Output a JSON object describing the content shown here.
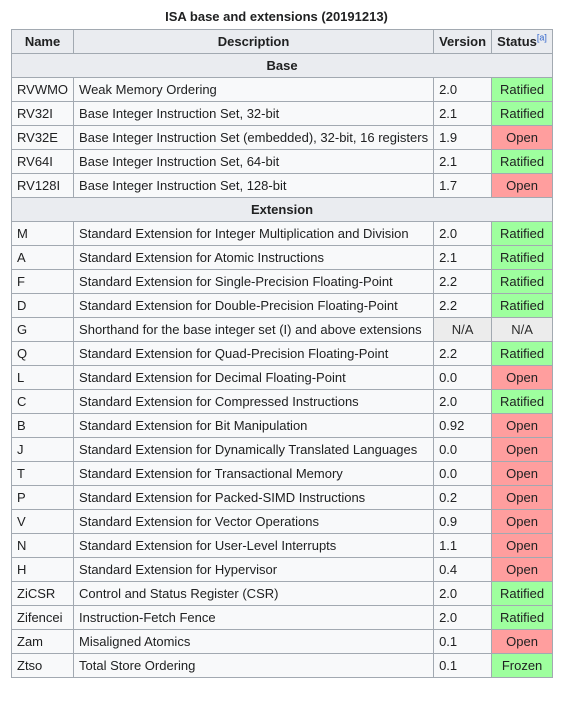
{
  "caption": "ISA base and extensions (20191213)",
  "headers": {
    "name": "Name",
    "description": "Description",
    "version": "Version",
    "status": "Status",
    "status_note": "[a]"
  },
  "sections": [
    {
      "title": "Base",
      "rows": [
        {
          "name": "RVWMO",
          "description": "Weak Memory Ordering",
          "version": "2.0",
          "status": "Ratified"
        },
        {
          "name": "RV32I",
          "description": "Base Integer Instruction Set, 32-bit",
          "version": "2.1",
          "status": "Ratified"
        },
        {
          "name": "RV32E",
          "description": "Base Integer Instruction Set (embedded), 32-bit, 16 registers",
          "version": "1.9",
          "status": "Open"
        },
        {
          "name": "RV64I",
          "description": "Base Integer Instruction Set, 64-bit",
          "version": "2.1",
          "status": "Ratified"
        },
        {
          "name": "RV128I",
          "description": "Base Integer Instruction Set, 128-bit",
          "version": "1.7",
          "status": "Open"
        }
      ]
    },
    {
      "title": "Extension",
      "rows": [
        {
          "name": "M",
          "description": "Standard Extension for Integer Multiplication and Division",
          "version": "2.0",
          "status": "Ratified"
        },
        {
          "name": "A",
          "description": "Standard Extension for Atomic Instructions",
          "version": "2.1",
          "status": "Ratified"
        },
        {
          "name": "F",
          "description": "Standard Extension for Single-Precision Floating-Point",
          "version": "2.2",
          "status": "Ratified"
        },
        {
          "name": "D",
          "description": "Standard Extension for Double-Precision Floating-Point",
          "version": "2.2",
          "status": "Ratified"
        },
        {
          "name": "G",
          "description": "Shorthand for the base integer set (I) and above extensions",
          "version": "N/A",
          "status": "N/A"
        },
        {
          "name": "Q",
          "description": "Standard Extension for Quad-Precision Floating-Point",
          "version": "2.2",
          "status": "Ratified"
        },
        {
          "name": "L",
          "description": "Standard Extension for Decimal Floating-Point",
          "version": "0.0",
          "status": "Open"
        },
        {
          "name": "C",
          "description": "Standard Extension for Compressed Instructions",
          "version": "2.0",
          "status": "Ratified"
        },
        {
          "name": "B",
          "description": "Standard Extension for Bit Manipulation",
          "version": "0.92",
          "status": "Open"
        },
        {
          "name": "J",
          "description": "Standard Extension for Dynamically Translated Languages",
          "version": "0.0",
          "status": "Open"
        },
        {
          "name": "T",
          "description": "Standard Extension for Transactional Memory",
          "version": "0.0",
          "status": "Open"
        },
        {
          "name": "P",
          "description": "Standard Extension for Packed-SIMD Instructions",
          "version": "0.2",
          "status": "Open"
        },
        {
          "name": "V",
          "description": "Standard Extension for Vector Operations",
          "version": "0.9",
          "status": "Open"
        },
        {
          "name": "N",
          "description": "Standard Extension for User-Level Interrupts",
          "version": "1.1",
          "status": "Open"
        },
        {
          "name": "H",
          "description": "Standard Extension for Hypervisor",
          "version": "0.4",
          "status": "Open"
        },
        {
          "name": "ZiCSR",
          "description": "Control and Status Register (CSR)",
          "version": "2.0",
          "status": "Ratified"
        },
        {
          "name": "Zifencei",
          "description": "Instruction-Fetch Fence",
          "version": "2.0",
          "status": "Ratified"
        },
        {
          "name": "Zam",
          "description": "Misaligned Atomics",
          "version": "0.1",
          "status": "Open"
        },
        {
          "name": "Ztso",
          "description": "Total Store Ordering",
          "version": "0.1",
          "status": "Frozen"
        }
      ]
    }
  ],
  "status_colors": {
    "Ratified": "#9eff9e",
    "Frozen": "#9eff9e",
    "Open": "#ff9e9e",
    "N/A": "#ececec"
  }
}
